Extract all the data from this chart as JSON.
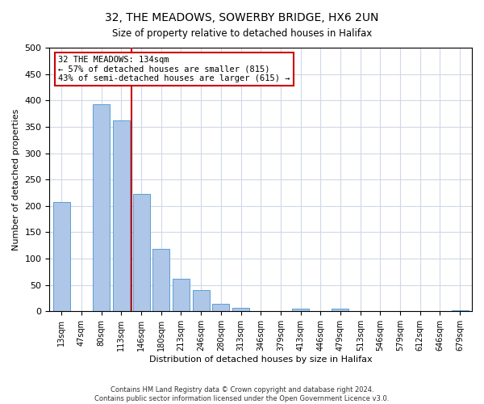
{
  "title": "32, THE MEADOWS, SOWERBY BRIDGE, HX6 2UN",
  "subtitle": "Size of property relative to detached houses in Halifax",
  "xlabel": "Distribution of detached houses by size in Halifax",
  "ylabel": "Number of detached properties",
  "bar_labels": [
    "13sqm",
    "47sqm",
    "80sqm",
    "113sqm",
    "146sqm",
    "180sqm",
    "213sqm",
    "246sqm",
    "280sqm",
    "313sqm",
    "346sqm",
    "379sqm",
    "413sqm",
    "446sqm",
    "479sqm",
    "513sqm",
    "546sqm",
    "579sqm",
    "612sqm",
    "646sqm",
    "679sqm"
  ],
  "bar_values": [
    207,
    0,
    393,
    362,
    222,
    118,
    62,
    40,
    15,
    7,
    0,
    0,
    5,
    0,
    5,
    0,
    0,
    0,
    0,
    0,
    2
  ],
  "bar_color": "#aec6e8",
  "bar_edge_color": "#5a9fd4",
  "marker_line_color": "#cc0000",
  "annotation_line1": "32 THE MEADOWS: 134sqm",
  "annotation_line2": "← 57% of detached houses are smaller (815)",
  "annotation_line3": "43% of semi-detached houses are larger (615) →",
  "annotation_box_edge": "#cc0000",
  "ylim": [
    0,
    500
  ],
  "yticks": [
    0,
    50,
    100,
    150,
    200,
    250,
    300,
    350,
    400,
    450,
    500
  ],
  "footer1": "Contains HM Land Registry data © Crown copyright and database right 2024.",
  "footer2": "Contains public sector information licensed under the Open Government Licence v3.0.",
  "background_color": "#ffffff",
  "grid_color": "#d0d8e8"
}
